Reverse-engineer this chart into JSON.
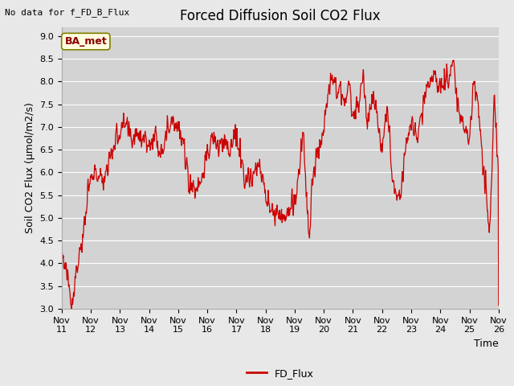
{
  "title": "Forced Diffusion Soil CO2 Flux",
  "no_data_label": "No data for f_FD_B_Flux",
  "ylabel": "Soil CO2 Flux (μmol/m2/s)",
  "xlabel": "Time",
  "legend_label": "FD_Flux",
  "annotation_label": "BA_met",
  "ylim": [
    3.0,
    9.2
  ],
  "yticks": [
    3.0,
    3.5,
    4.0,
    4.5,
    5.0,
    5.5,
    6.0,
    6.5,
    7.0,
    7.5,
    8.0,
    8.5,
    9.0
  ],
  "line_color": "#CC0000",
  "bg_color": "#E8E8E8",
  "plot_bg_color": "#D3D3D3",
  "grid_color": "#FFFFFF",
  "title_fontsize": 12,
  "label_fontsize": 9,
  "tick_fontsize": 8,
  "x_start": 11.0,
  "x_end": 26.0,
  "xtick_labels": [
    "Nov 11",
    "Nov 12",
    "Nov 13",
    "Nov 14",
    "Nov 15",
    "Nov 16",
    "Nov 17",
    "Nov 18",
    "Nov 19",
    "Nov 20",
    "Nov 21",
    "Nov 22",
    "Nov 23",
    "Nov 24",
    "Nov 25",
    "Nov 26"
  ],
  "xtick_positions": [
    11,
    12,
    13,
    14,
    15,
    16,
    17,
    18,
    19,
    20,
    21,
    22,
    23,
    24,
    25,
    26
  ]
}
